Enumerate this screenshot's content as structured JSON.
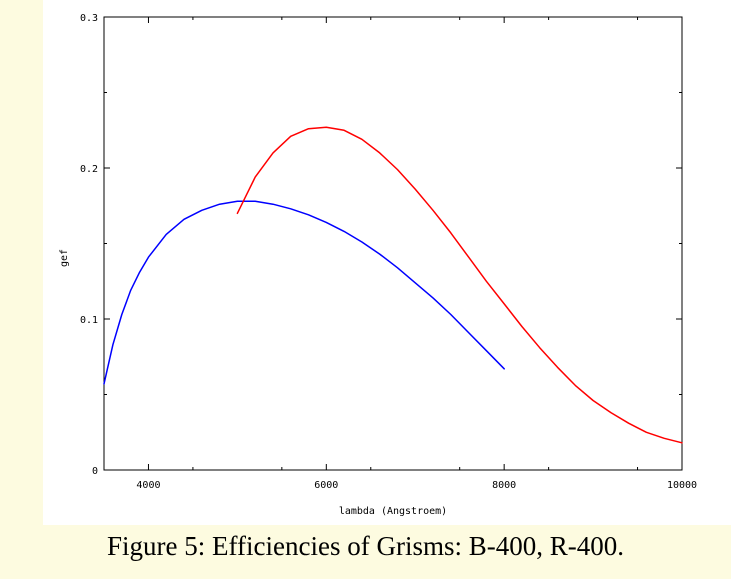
{
  "caption": "Figure 5: Efficiencies of Grisms: B-400, R-400.",
  "chart_data": {
    "type": "line",
    "title": "",
    "xlabel": "lambda (Angstroem)",
    "ylabel": "gef",
    "xlim": [
      3500,
      10000
    ],
    "ylim": [
      0,
      0.3
    ],
    "x_ticks": [
      4000,
      6000,
      8000,
      10000
    ],
    "x_tick_labels": [
      "4000",
      "6000",
      "8000",
      "10000"
    ],
    "y_ticks": [
      0,
      0.1,
      0.2,
      0.3
    ],
    "y_tick_labels": [
      "0",
      "0.1",
      "0.2",
      "0.3"
    ],
    "grid": false,
    "series": [
      {
        "color": "#0000ff",
        "x": [
          3500,
          3600,
          3700,
          3800,
          3900,
          4000,
          4200,
          4400,
          4600,
          4800,
          5000,
          5200,
          5400,
          5600,
          5800,
          6000,
          6200,
          6400,
          6600,
          6800,
          7000,
          7200,
          7400,
          7600,
          7800,
          8000
        ],
        "y": [
          0.057,
          0.083,
          0.103,
          0.119,
          0.131,
          0.141,
          0.156,
          0.166,
          0.172,
          0.176,
          0.178,
          0.178,
          0.176,
          0.173,
          0.169,
          0.164,
          0.158,
          0.151,
          0.143,
          0.134,
          0.124,
          0.114,
          0.103,
          0.091,
          0.079,
          0.067
        ]
      },
      {
        "color": "#ff0000",
        "x": [
          5000,
          5100,
          5200,
          5400,
          5600,
          5800,
          6000,
          6200,
          6400,
          6600,
          6800,
          7000,
          7200,
          7400,
          7600,
          7800,
          8000,
          8200,
          8400,
          8600,
          8800,
          9000,
          9200,
          9400,
          9600,
          9800,
          10000
        ],
        "y": [
          0.17,
          0.182,
          0.194,
          0.21,
          0.221,
          0.226,
          0.227,
          0.225,
          0.219,
          0.21,
          0.199,
          0.186,
          0.172,
          0.157,
          0.141,
          0.125,
          0.11,
          0.095,
          0.081,
          0.068,
          0.056,
          0.046,
          0.038,
          0.031,
          0.025,
          0.021,
          0.018
        ]
      }
    ]
  }
}
